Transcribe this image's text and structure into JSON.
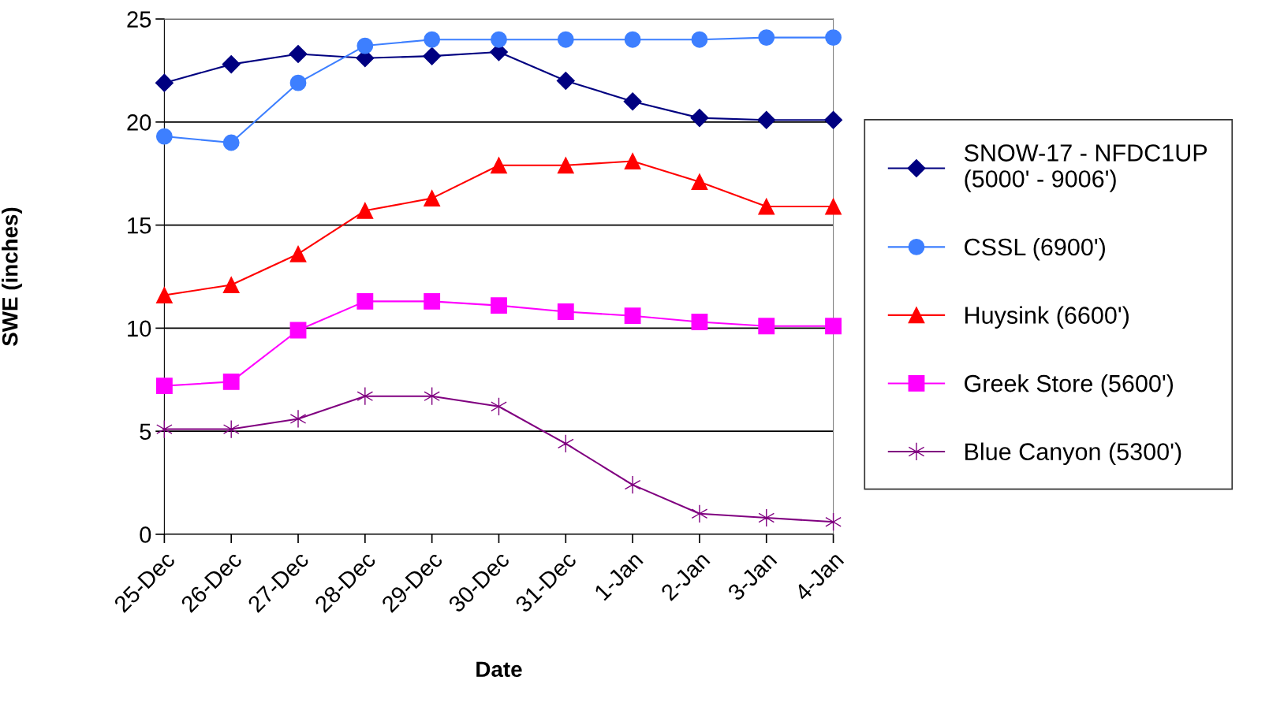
{
  "chart_data": {
    "type": "line",
    "xlabel": "Date",
    "ylabel": "SWE (inches)",
    "categories": [
      "25-Dec",
      "26-Dec",
      "27-Dec",
      "28-Dec",
      "29-Dec",
      "30-Dec",
      "31-Dec",
      "1-Jan",
      "2-Jan",
      "3-Jan",
      "4-Jan"
    ],
    "series": [
      {
        "name": "SNOW-17 - NFDC1UP\n(5000' - 9006')",
        "color": "#000080",
        "marker": "diamond",
        "values": [
          21.9,
          22.8,
          23.3,
          23.1,
          23.2,
          23.4,
          22.0,
          21.0,
          20.2,
          20.1,
          20.1
        ]
      },
      {
        "name": "CSSL (6900')",
        "color": "#3d7fff",
        "marker": "circle",
        "values": [
          19.3,
          19.0,
          21.9,
          23.7,
          24.0,
          24.0,
          24.0,
          24.0,
          24.0,
          24.1,
          24.1
        ]
      },
      {
        "name": "Huysink (6600')",
        "color": "#ff0000",
        "marker": "triangle",
        "values": [
          11.6,
          12.1,
          13.6,
          15.7,
          16.3,
          17.9,
          17.9,
          18.1,
          17.1,
          15.9,
          15.9
        ]
      },
      {
        "name": "Greek Store (5600')",
        "color": "#ff00ff",
        "marker": "square",
        "values": [
          7.2,
          7.4,
          9.9,
          11.3,
          11.3,
          11.1,
          10.8,
          10.6,
          10.3,
          10.1,
          10.1
        ]
      },
      {
        "name": "Blue Canyon (5300')",
        "color": "#800080",
        "marker": "cross",
        "values": [
          5.1,
          5.1,
          5.6,
          6.7,
          6.7,
          6.2,
          4.4,
          2.4,
          1.0,
          0.8,
          0.6
        ]
      }
    ],
    "ylim": [
      0,
      25
    ],
    "yticks": [
      0,
      5,
      10,
      15,
      20,
      25
    ],
    "grid": "y",
    "legend": "right",
    "line_style": "solid"
  }
}
